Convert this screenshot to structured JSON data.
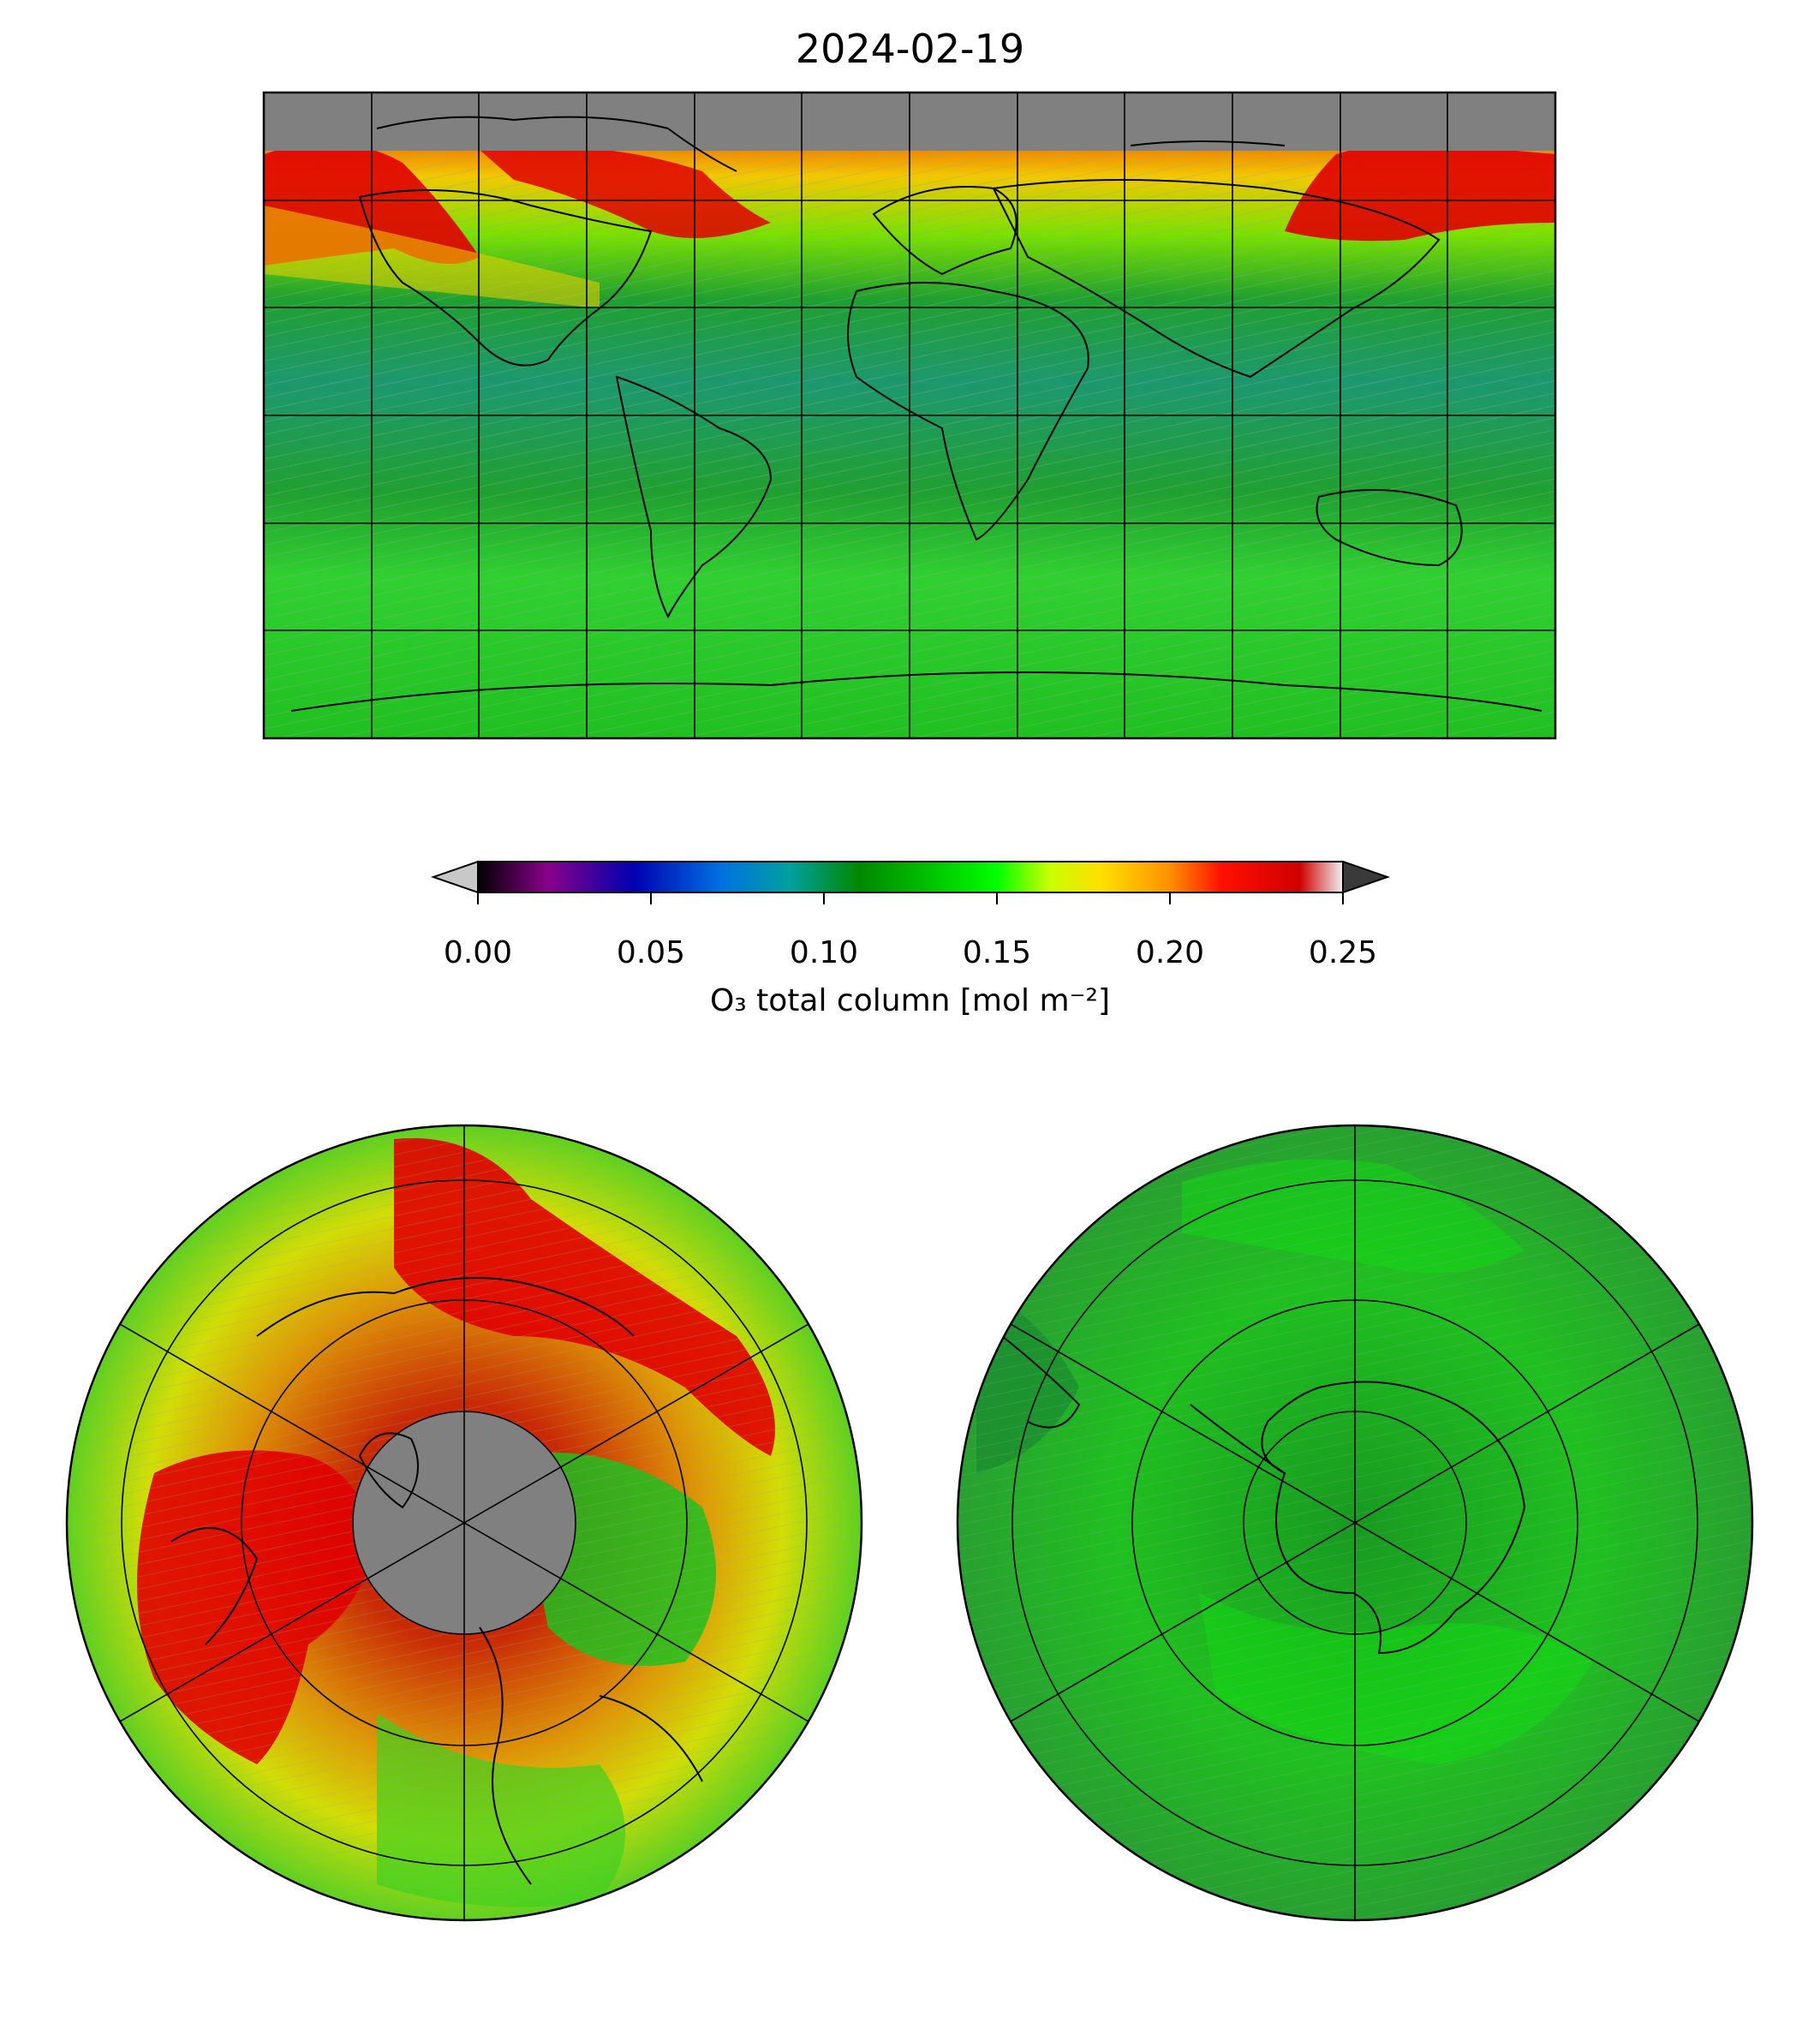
{
  "title": "2024-02-19",
  "colorbar": {
    "label": "O₃ total column [mol m⁻²]",
    "ticks": [
      "0.00",
      "0.05",
      "0.10",
      "0.15",
      "0.20",
      "0.25"
    ],
    "tick_values": [
      0.0,
      0.05,
      0.1,
      0.15,
      0.2,
      0.25
    ],
    "range": [
      0.0,
      0.25
    ],
    "extend": "both",
    "under_color": "#c8c8c8",
    "over_color": "#3a3a3a",
    "colormap_stops": [
      "#000000",
      "#8a008a",
      "#0000b0",
      "#0070e0",
      "#00a0a0",
      "#008800",
      "#00c000",
      "#00ff00",
      "#c8ff00",
      "#ffe000",
      "#ff9000",
      "#ff1000",
      "#d00000",
      "#f0f0f0"
    ]
  },
  "colors": {
    "missing": "#808080",
    "low_field": "#1f9a3a",
    "mid_field": "#20c020",
    "high_field": "#e80000",
    "transition": "#f2d000"
  },
  "panels": [
    {
      "name": "global",
      "projection": "equirectangular",
      "graticule": "30° lon × 30° lat"
    },
    {
      "name": "north-polar",
      "projection": "north polar stereographic"
    },
    {
      "name": "south-polar",
      "projection": "south polar stereographic"
    }
  ]
}
